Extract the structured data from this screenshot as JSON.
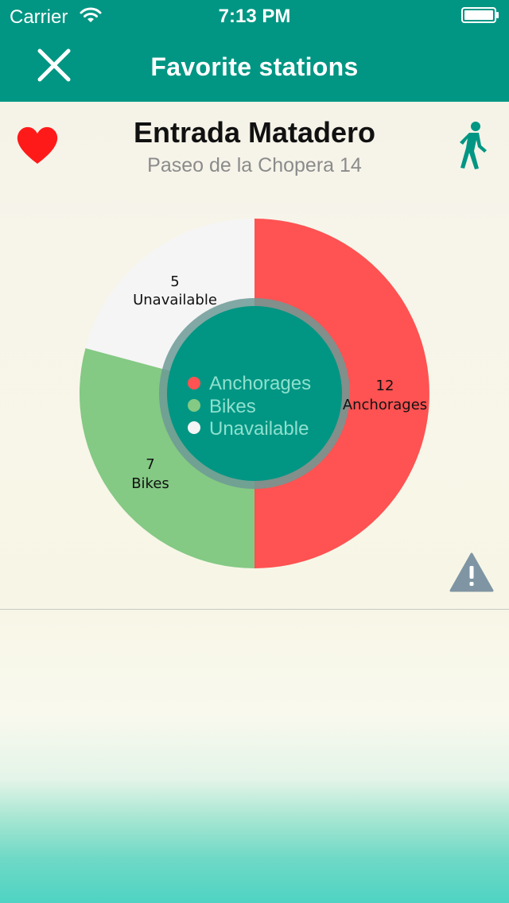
{
  "status_bar": {
    "carrier": "Carrier",
    "time": "7:13 PM",
    "icons": [
      "wifi-icon",
      "battery-icon"
    ]
  },
  "nav": {
    "title": "Favorite stations",
    "close_icon": "close-icon"
  },
  "station": {
    "name": "Entrada Matadero",
    "address": "Paseo de la Chopera 14",
    "favorite_icon": "heart-icon",
    "walk_icon": "walking-person-icon",
    "report_icon": "warning-icon"
  },
  "colors": {
    "bar": "#009683",
    "anchorages": "#ff5252",
    "bikes": "#84c984",
    "unavailable": "#f5f5f5",
    "center": "#009683",
    "heart": "#ff1a1a",
    "warning": "#7f95a3"
  },
  "chart_data": {
    "type": "pie",
    "series": [
      {
        "name": "Anchorages",
        "value": 12,
        "value_label": "12",
        "category_label": "Anchorages",
        "color": "#ff5252"
      },
      {
        "name": "Bikes",
        "value": 7,
        "value_label": "7",
        "category_label": "Bikes",
        "color": "#84c984"
      },
      {
        "name": "Unavailable",
        "value": 5,
        "value_label": "5",
        "category_label": "Unavailable",
        "color": "#f5f5f5"
      }
    ],
    "legend": [
      "Anchorages",
      "Bikes",
      "Unavailable"
    ],
    "legend_placement": "center"
  }
}
